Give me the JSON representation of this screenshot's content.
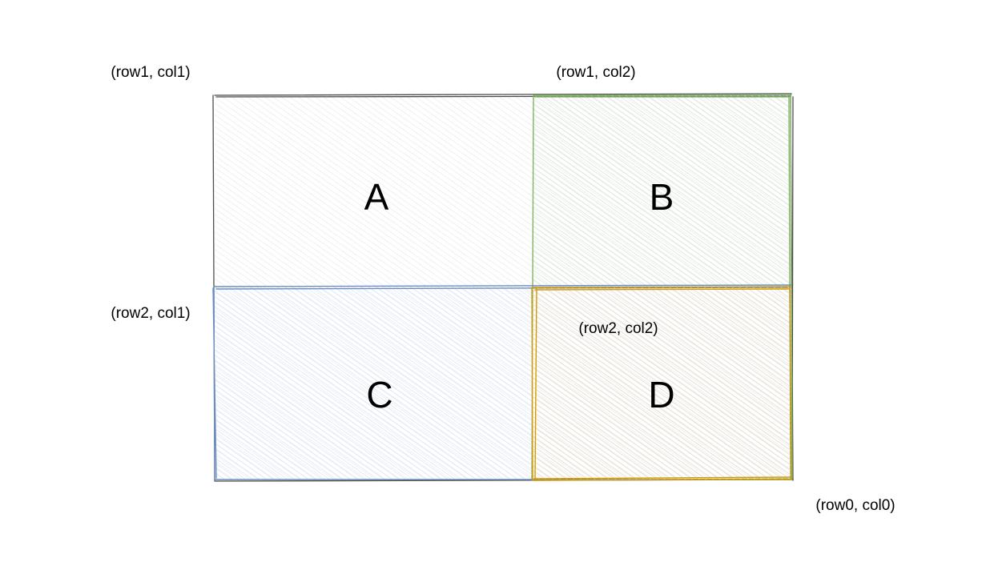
{
  "cells": [
    {
      "id": "a",
      "letter": "A",
      "color": "#4d4d4d"
    },
    {
      "id": "b",
      "letter": "B",
      "color": "#82b366"
    },
    {
      "id": "c",
      "letter": "C",
      "color": "#6c8ebf"
    },
    {
      "id": "d",
      "letter": "D",
      "color": "#d79b00"
    }
  ],
  "coordinates": [
    {
      "id": "row1-col1",
      "text": "(row1, col1)"
    },
    {
      "id": "row1-col2",
      "text": "(row1, col2)"
    },
    {
      "id": "row2-col1",
      "text": "(row2, col1)"
    },
    {
      "id": "row2-col2",
      "text": "(row2, col2)"
    },
    {
      "id": "row0-col0",
      "text": "(row0, col0)"
    }
  ],
  "hatch_colors": {
    "a": "#e6e6e6",
    "b": "#d5e8d4",
    "c": "#dae8fc",
    "d": "#ffe6cc"
  }
}
